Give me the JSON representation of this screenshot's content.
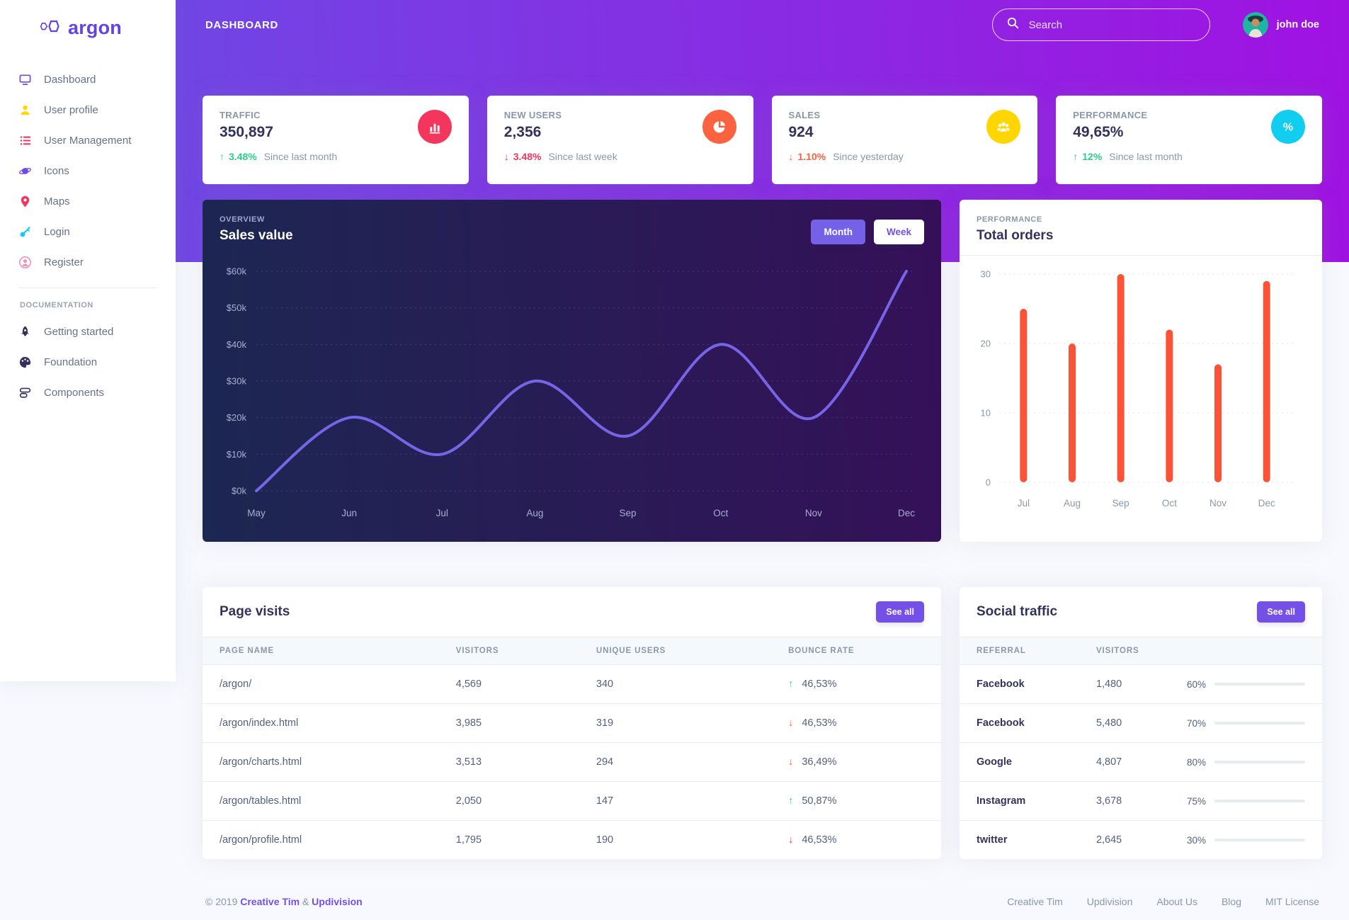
{
  "brand": {
    "name": "argon"
  },
  "sidebar": {
    "items": [
      {
        "label": "Dashboard",
        "icon": "tv-icon",
        "color": "#7048e8"
      },
      {
        "label": "User profile",
        "icon": "user-icon",
        "color": "#ffd600"
      },
      {
        "label": "User Management",
        "icon": "list-icon",
        "color": "#f5365c"
      },
      {
        "label": "Icons",
        "icon": "planet-icon",
        "color": "#7048e8"
      },
      {
        "label": "Maps",
        "icon": "pin-icon",
        "color": "#f5365c"
      },
      {
        "label": "Login",
        "icon": "key-icon",
        "color": "#11cdef"
      },
      {
        "label": "Register",
        "icon": "user-circle-icon",
        "color": "#f78fb3"
      }
    ],
    "section_title": "DOCUMENTATION",
    "doc_items": [
      {
        "label": "Getting started",
        "icon": "rocket-icon",
        "color": "#32325d"
      },
      {
        "label": "Foundation",
        "icon": "palette-icon",
        "color": "#32325d"
      },
      {
        "label": "Components",
        "icon": "components-icon",
        "color": "#32325d"
      }
    ]
  },
  "header": {
    "title": "DASHBOARD",
    "search_placeholder": "Search",
    "user": "john doe"
  },
  "stats": [
    {
      "label": "TRAFFIC",
      "value": "350,897",
      "direction": "up",
      "delta": "3.48%",
      "delta_color": "#2dce89",
      "period": "Since last month",
      "icon": "chart-bar-icon",
      "icon_bg": "#f5365c"
    },
    {
      "label": "NEW USERS",
      "value": "2,356",
      "direction": "down",
      "delta": "3.48%",
      "delta_color": "#f5365c",
      "period": "Since last week",
      "icon": "pie-chart-icon",
      "icon_bg": "#fb6340"
    },
    {
      "label": "SALES",
      "value": "924",
      "direction": "down",
      "delta": "1.10%",
      "delta_color": "#fb6340",
      "period": "Since yesterday",
      "icon": "users-icon",
      "icon_bg": "#ffd600"
    },
    {
      "label": "PERFORMANCE",
      "value": "49,65%",
      "direction": "up",
      "delta": "12%",
      "delta_color": "#2dce89",
      "period": "Since last month",
      "icon": "percent-icon",
      "icon_bg": "#11cdef"
    }
  ],
  "sales_chart": {
    "overline": "OVERVIEW",
    "title": "Sales value",
    "buttons": [
      "Month",
      "Week"
    ],
    "active_button": "Month"
  },
  "orders_chart": {
    "overline": "PERFORMANCE",
    "title": "Total orders"
  },
  "chart_data": [
    {
      "type": "line",
      "title": "Sales value",
      "x": [
        "May",
        "Jun",
        "Jul",
        "Aug",
        "Sep",
        "Oct",
        "Nov",
        "Dec"
      ],
      "values": [
        0,
        20,
        10,
        30,
        15,
        40,
        20,
        60
      ],
      "unit": "$k",
      "ylim": [
        0,
        60
      ],
      "yticks": [
        "$0k",
        "$10k",
        "$20k",
        "$30k",
        "$40k",
        "$50k",
        "$60k"
      ],
      "grid": "dotted",
      "legend": "none",
      "line_color": "#7765e8"
    },
    {
      "type": "bar",
      "title": "Total orders",
      "categories": [
        "Jul",
        "Aug",
        "Sep",
        "Oct",
        "Nov",
        "Dec"
      ],
      "values": [
        25,
        20,
        30,
        22,
        17,
        29
      ],
      "ylim": [
        0,
        30
      ],
      "yticks": [
        0,
        10,
        20,
        30
      ],
      "grid": "dotted",
      "legend": "none",
      "bar_color": "#fb5337"
    }
  ],
  "page_visits": {
    "title": "Page visits",
    "see_all": "See all",
    "headers": [
      "PAGE NAME",
      "VISITORS",
      "UNIQUE USERS",
      "BOUNCE RATE"
    ],
    "rows": [
      {
        "page": "/argon/",
        "visitors": "4,569",
        "unique": "340",
        "direction": "up",
        "arrow_color": "#2dce89",
        "rate": "46,53%"
      },
      {
        "page": "/argon/index.html",
        "visitors": "3,985",
        "unique": "319",
        "direction": "down",
        "arrow_color": "#fb6340",
        "rate": "46,53%"
      },
      {
        "page": "/argon/charts.html",
        "visitors": "3,513",
        "unique": "294",
        "direction": "down",
        "arrow_color": "#fb6340",
        "rate": "36,49%"
      },
      {
        "page": "/argon/tables.html",
        "visitors": "2,050",
        "unique": "147",
        "direction": "up",
        "arrow_color": "#2dce89",
        "rate": "50,87%"
      },
      {
        "page": "/argon/profile.html",
        "visitors": "1,795",
        "unique": "190",
        "direction": "down",
        "arrow_color": "#f5365c",
        "rate": "46,53%"
      }
    ]
  },
  "social_traffic": {
    "title": "Social traffic",
    "see_all": "See all",
    "headers": [
      "REFERRAL",
      "VISITORS"
    ],
    "rows": [
      {
        "referral": "Facebook",
        "visitors": "1,480",
        "pct": "60%",
        "pct_value": 60,
        "bar_from": "#f5365c",
        "bar_to": "#fb6340"
      },
      {
        "referral": "Facebook",
        "visitors": "5,480",
        "pct": "70%",
        "pct_value": 70,
        "bar_from": "#2dce89",
        "bar_to": "#2dcecc"
      },
      {
        "referral": "Google",
        "visitors": "4,807",
        "pct": "80%",
        "pct_value": 80,
        "bar_from": "#6528e0",
        "bar_to": "#9b00f5"
      },
      {
        "referral": "Instagram",
        "visitors": "3,678",
        "pct": "75%",
        "pct_value": 75,
        "bar_from": "#25b3f2",
        "bar_to": "#4b3fe4"
      },
      {
        "referral": "twitter",
        "visitors": "2,645",
        "pct": "30%",
        "pct_value": 30,
        "bar_from": "#f23b2e",
        "bar_to": "#fbb140"
      }
    ]
  },
  "footer": {
    "copyright": "© 2019",
    "brand1": "Creative Tim",
    "amp": "&",
    "brand2": "Updivision",
    "links": [
      "Creative Tim",
      "Updivision",
      "About Us",
      "Blog",
      "MIT License"
    ]
  }
}
